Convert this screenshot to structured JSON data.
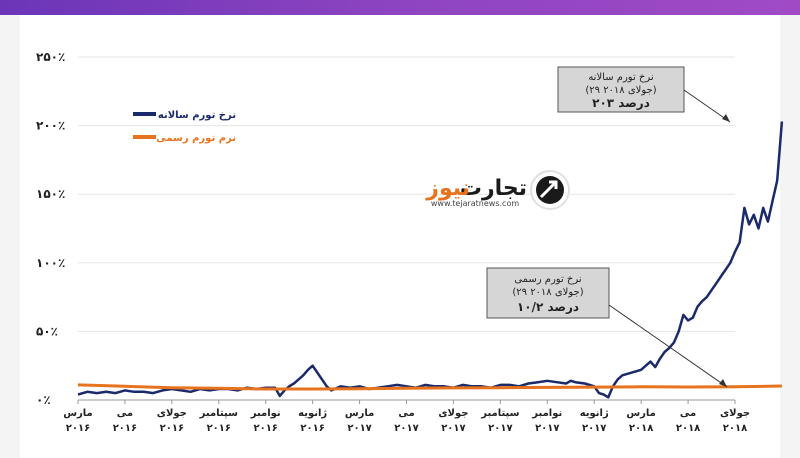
{
  "header": {
    "accent": "#8e44c0"
  },
  "logo": {
    "name_part1": "تجارت",
    "name_part2": "نیوز",
    "url": "www.tejaratnews.com",
    "color_dark": "#1a1a1a",
    "color_accent": "#e8731e",
    "icon": "arrow-circle-icon"
  },
  "chart_data": {
    "type": "line",
    "title": "",
    "xlabel": "",
    "ylabel": "",
    "y_ticks": [
      "۰٪",
      "۵۰٪",
      "۱۰۰٪",
      "۱۵۰٪",
      "۲۰۰٪",
      "۲۵۰٪"
    ],
    "ylim": [
      0,
      250
    ],
    "x_ticks": [
      {
        "month": "مارس",
        "year": "۲۰۱۶"
      },
      {
        "month": "می",
        "year": "۲۰۱۶"
      },
      {
        "month": "جولای",
        "year": "۲۰۱۶"
      },
      {
        "month": "سپتامبر",
        "year": "۲۰۱۶"
      },
      {
        "month": "نوامبر",
        "year": "۲۰۱۶"
      },
      {
        "month": "ژانویه",
        "year": "۲۰۱۶"
      },
      {
        "month": "مارس",
        "year": "۲۰۱۷"
      },
      {
        "month": "می",
        "year": "۲۰۱۷"
      },
      {
        "month": "جولای",
        "year": "۲۰۱۷"
      },
      {
        "month": "سپتامبر",
        "year": "۲۰۱۷"
      },
      {
        "month": "نوامبر",
        "year": "۲۰۱۷"
      },
      {
        "month": "ژانویه",
        "year": "۲۰۱۷"
      },
      {
        "month": "مارس",
        "year": "۲۰۱۸"
      },
      {
        "month": "می",
        "year": "۲۰۱۸"
      },
      {
        "month": "جولای",
        "year": "۲۰۱۸"
      }
    ],
    "grid": "horizontal",
    "legend_position": "top-left",
    "series": [
      {
        "name": "نرخ تورم سالانه",
        "color": "#1b2a6b",
        "x": [
          0,
          0.2,
          0.4,
          0.6,
          0.8,
          1.0,
          1.2,
          1.4,
          1.6,
          1.8,
          2.0,
          2.2,
          2.4,
          2.6,
          2.8,
          3.0,
          3.2,
          3.4,
          3.6,
          3.8,
          4.0,
          4.2,
          4.3,
          4.4,
          4.5,
          4.6,
          4.7,
          4.8,
          4.9,
          5.0,
          5.1,
          5.2,
          5.3,
          5.4,
          5.6,
          5.8,
          6.0,
          6.2,
          6.4,
          6.6,
          6.8,
          7.0,
          7.2,
          7.4,
          7.6,
          7.8,
          8.0,
          8.2,
          8.4,
          8.6,
          8.8,
          9.0,
          9.2,
          9.4,
          9.6,
          9.8,
          10.0,
          10.2,
          10.4,
          10.5,
          10.6,
          10.8,
          11.0,
          11.1,
          11.2,
          11.3,
          11.4,
          11.5,
          11.6,
          11.8,
          12.0,
          12.1,
          12.2,
          12.3,
          12.4,
          12.5,
          12.6,
          12.7,
          12.8,
          12.9,
          13.0,
          13.1,
          13.2,
          13.3,
          13.4,
          13.5,
          13.6,
          13.7,
          13.8,
          13.9,
          14.0,
          14.1,
          14.2,
          14.3,
          14.4,
          14.5,
          14.6,
          14.7,
          14.8,
          14.9,
          15.0
        ],
        "values": [
          4,
          6,
          5,
          6,
          5,
          7,
          6,
          6,
          5,
          7,
          8,
          7,
          6,
          8,
          7,
          8,
          8,
          7,
          9,
          8,
          9,
          9,
          3,
          7,
          10,
          12,
          15,
          18,
          22,
          25,
          20,
          15,
          10,
          7,
          10,
          9,
          10,
          8,
          9,
          10,
          11,
          10,
          9,
          11,
          10,
          10,
          9,
          11,
          10,
          10,
          9,
          11,
          11,
          10,
          12,
          13,
          14,
          13,
          12,
          14,
          13,
          12,
          10,
          5,
          4,
          2,
          10,
          15,
          18,
          20,
          22,
          25,
          28,
          24,
          30,
          35,
          38,
          42,
          50,
          62,
          58,
          60,
          68,
          72,
          75,
          80,
          85,
          90,
          95,
          100,
          108,
          115,
          140,
          128,
          135,
          125,
          140,
          130,
          145,
          160,
          203
        ]
      },
      {
        "name": "نرم تورم رسمی",
        "color": "#e8731e",
        "x": [
          0,
          1,
          2,
          3,
          4,
          5,
          6,
          7,
          8,
          9,
          10,
          11,
          12,
          13,
          14,
          15
        ],
        "values": [
          11,
          10,
          9,
          8.5,
          8,
          8,
          8.2,
          8.5,
          8.8,
          9,
          9.2,
          9.4,
          9.6,
          9.5,
          9.6,
          10.2
        ]
      }
    ],
    "annotations": [
      {
        "target_series": "نرخ تورم سالانه",
        "line1": "نرخ تورم سالانه",
        "line2": "(۲۹ جولای ۲۰۱۸)",
        "line3": "۲۰۳ درصد"
      },
      {
        "target_series": "نرم تورم رسمی",
        "line1": "نرخ تورم رسمی",
        "line2": "(۲۹ جولای ۲۰۱۸)",
        "line3": "۱۰/۲ درصد"
      }
    ]
  }
}
